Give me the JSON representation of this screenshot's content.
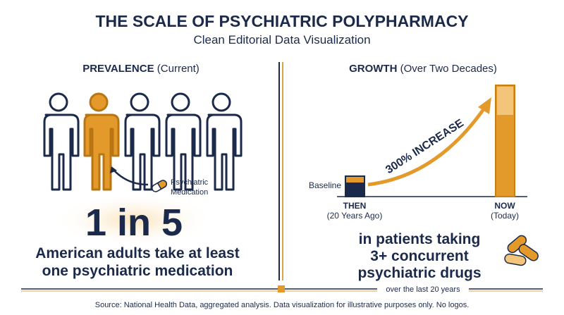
{
  "header": {
    "title": "THE SCALE OF PSYCHIATRIC POLYPHARMACY",
    "subtitle": "Clean Editorial Data Visualization"
  },
  "prevalence": {
    "heading": "PREVALENCE",
    "heading_note": "(Current)",
    "callout": [
      "Psychiatric",
      "Medication"
    ],
    "stat": "1 in 5",
    "description": [
      "American adults take at least",
      "one psychiatric medication"
    ]
  },
  "growth": {
    "heading": "GROWTH",
    "heading_note": "(Over Two Decades)",
    "baseline_label": "Baseline",
    "arrow_label": "300% INCREASE",
    "then": {
      "label": "THEN",
      "sublabel": "(20 Years Ago)"
    },
    "now": {
      "label": "NOW",
      "sublabel": "(Today)"
    },
    "description": [
      "in patients taking",
      "3+ concurrent",
      "psychiatric drugs"
    ]
  },
  "footer": {
    "period": "over the last 20 years",
    "source": "Source: National Health Data, aggregated analysis. Data visualization for illustrative purposes only. No logos."
  }
}
